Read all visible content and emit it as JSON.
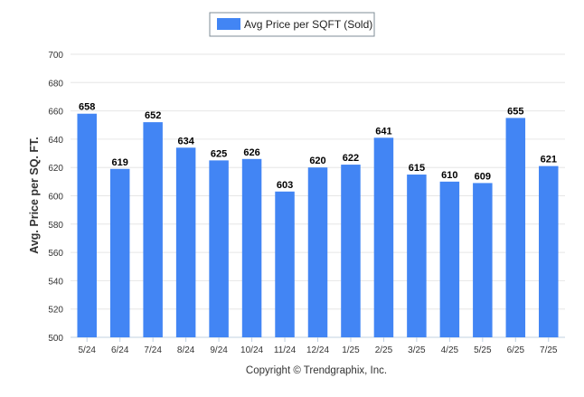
{
  "chart_data": {
    "type": "bar",
    "title": "",
    "xlabel": "",
    "ylabel": "Avg. Price per SQ. FT.",
    "categories": [
      "5/24",
      "6/24",
      "7/24",
      "8/24",
      "9/24",
      "10/24",
      "11/24",
      "12/24",
      "1/25",
      "2/25",
      "3/25",
      "4/25",
      "5/25",
      "6/25",
      "7/25"
    ],
    "series": [
      {
        "name": "Avg Price per SQFT (Sold)",
        "values": [
          658,
          619,
          652,
          634,
          625,
          626,
          603,
          620,
          622,
          641,
          615,
          610,
          609,
          655,
          621
        ]
      }
    ],
    "ylim": [
      500,
      700
    ],
    "yticks": [
      500,
      520,
      540,
      560,
      580,
      600,
      620,
      640,
      660,
      680,
      700
    ],
    "grid": true,
    "legend_position": "top-center",
    "data_labels": true,
    "colors": {
      "bar": "#4285f4",
      "grid": "#e6e6e6",
      "axis": "#c0d0e0",
      "text": "#333333",
      "label": "#000000"
    },
    "credit": "Copyright © Trendgraphix, Inc."
  }
}
